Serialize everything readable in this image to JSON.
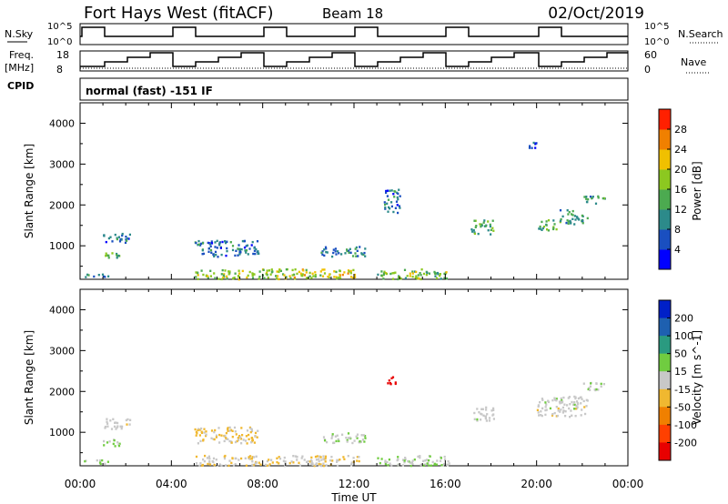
{
  "header": {
    "radar": "Fort Hays West (fitACF)",
    "beam": "Beam 18",
    "date": "02/Oct/2019"
  },
  "strip": {
    "nsky_label": "N.Sky",
    "nsearch_label": "N.Search",
    "noise_ticks_left": [
      "10^5",
      "10^0"
    ],
    "noise_ticks_right": [
      "10^5",
      "10^0"
    ],
    "freq_label": "Freq.",
    "freq_unit": "[MHz]",
    "freq_ticks": [
      "18",
      "8"
    ],
    "nave_label": "Nave",
    "nave_ticks": [
      "60",
      "0"
    ],
    "cpid_label": "CPID",
    "cpid_text": "normal (fast) -151 IF"
  },
  "x_axis": {
    "label": "Time UT",
    "ticks": [
      "00:00",
      "04:00",
      "08:00",
      "12:00",
      "16:00",
      "20:00",
      "00:00"
    ]
  },
  "panels": {
    "power": {
      "ylabel": "Slant Range [km]",
      "yticks": [
        "4000",
        "3000",
        "2000",
        "1000"
      ],
      "cbar_label": "Power [dB]",
      "cbar_ticks": [
        "28",
        "24",
        "20",
        "16",
        "12",
        "8",
        "4"
      ],
      "cbar_colors": [
        "#0000ff",
        "#1a4fc0",
        "#2c8a8a",
        "#4caa50",
        "#8cc820",
        "#f0c000",
        "#f08000",
        "#ff2000"
      ]
    },
    "velocity": {
      "ylabel": "Slant Range [km]",
      "yticks": [
        "4000",
        "3000",
        "2000",
        "1000"
      ],
      "cbar_label": "Velocity [m s^-1]",
      "cbar_ticks": [
        "200",
        "100",
        "50",
        "15",
        "-15",
        "-50",
        "-100",
        "-200"
      ],
      "cbar_colors": [
        "#0020c8",
        "#1e60b0",
        "#2a9a80",
        "#70cc40",
        "#c8c8c8",
        "#f0b830",
        "#f08000",
        "#ff4000",
        "#e80000"
      ]
    }
  },
  "chart_data": [
    {
      "type": "heatmap",
      "title": "Power [dB]",
      "xlabel": "Time UT",
      "ylabel": "Slant Range [km]",
      "xlim": [
        0,
        24
      ],
      "ylim": [
        180,
        4500
      ],
      "colorbar_range": [
        0,
        32
      ],
      "series": [
        {
          "t0": 0.0,
          "t1": 1.2,
          "r0": 250,
          "r1": 340,
          "value": 9
        },
        {
          "t0": 0.9,
          "t1": 1.7,
          "r0": 680,
          "r1": 860,
          "value": 15
        },
        {
          "t0": 1.0,
          "t1": 2.2,
          "r0": 1100,
          "r1": 1350,
          "value": 8
        },
        {
          "t0": 5.0,
          "t1": 7.8,
          "r0": 750,
          "r1": 1150,
          "value": 8
        },
        {
          "t0": 5.0,
          "t1": 9.0,
          "r0": 200,
          "r1": 450,
          "value": 17
        },
        {
          "t0": 9.0,
          "t1": 12.2,
          "r0": 200,
          "r1": 450,
          "value": 20
        },
        {
          "t0": 10.5,
          "t1": 12.5,
          "r0": 760,
          "r1": 1000,
          "value": 9
        },
        {
          "t0": 13.0,
          "t1": 16.2,
          "r0": 200,
          "r1": 450,
          "value": 16
        },
        {
          "t0": 13.3,
          "t1": 14.0,
          "r0": 1800,
          "r1": 2400,
          "value": 8
        },
        {
          "t0": 17.1,
          "t1": 18.1,
          "r0": 1300,
          "r1": 1650,
          "value": 13
        },
        {
          "t0": 20.0,
          "t1": 21.0,
          "r0": 1400,
          "r1": 1650,
          "value": 14
        },
        {
          "t0": 21.0,
          "t1": 22.2,
          "r0": 1550,
          "r1": 1900,
          "value": 11
        },
        {
          "t0": 22.0,
          "t1": 23.0,
          "r0": 2050,
          "r1": 2250,
          "value": 12
        },
        {
          "t0": 19.6,
          "t1": 20.0,
          "r0": 3400,
          "r1": 3600,
          "value": 8
        }
      ]
    },
    {
      "type": "heatmap",
      "title": "Velocity [m s^-1]",
      "xlabel": "Time UT",
      "ylabel": "Slant Range [km]",
      "xlim": [
        0,
        24
      ],
      "ylim": [
        180,
        4500
      ],
      "colorbar_range": [
        -250,
        250
      ],
      "series": [
        {
          "t0": 0.0,
          "t1": 1.2,
          "r0": 250,
          "r1": 340,
          "value": 30
        },
        {
          "t0": 0.9,
          "t1": 1.7,
          "r0": 680,
          "r1": 860,
          "value": 40
        },
        {
          "t0": 1.0,
          "t1": 2.2,
          "r0": 1100,
          "r1": 1350,
          "value": 0
        },
        {
          "t0": 5.0,
          "t1": 7.8,
          "r0": 750,
          "r1": 1150,
          "value": -30
        },
        {
          "t0": 5.0,
          "t1": 12.2,
          "r0": 200,
          "r1": 450,
          "value": -25
        },
        {
          "t0": 10.5,
          "t1": 12.5,
          "r0": 760,
          "r1": 1000,
          "value": 20
        },
        {
          "t0": 13.0,
          "t1": 16.2,
          "r0": 200,
          "r1": 450,
          "value": 20
        },
        {
          "t0": 13.4,
          "t1": 13.8,
          "r0": 2200,
          "r1": 2400,
          "value": -220
        },
        {
          "t0": 17.1,
          "t1": 18.1,
          "r0": 1300,
          "r1": 1650,
          "value": 0
        },
        {
          "t0": 20.0,
          "t1": 22.2,
          "r0": 1400,
          "r1": 1900,
          "value": 0
        },
        {
          "t0": 22.0,
          "t1": 23.0,
          "r0": 2050,
          "r1": 2250,
          "value": 5
        }
      ]
    }
  ]
}
